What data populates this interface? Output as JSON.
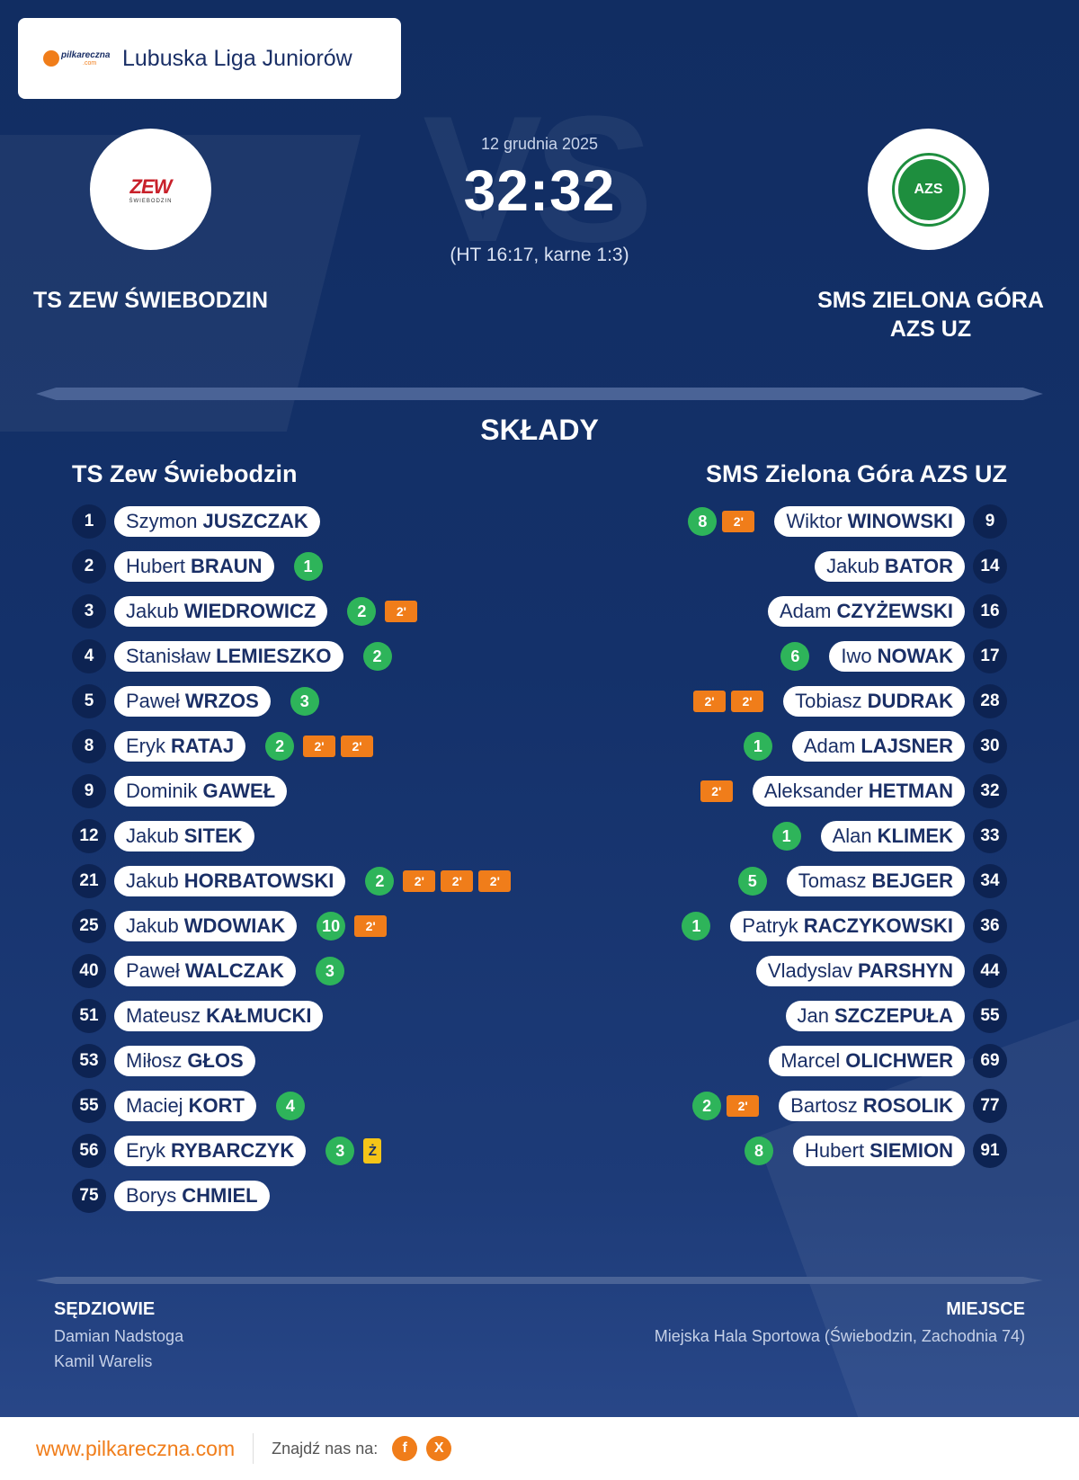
{
  "league": {
    "brand_top": "pilkareczna",
    "brand_bottom": ".com",
    "name": "Lubuska Liga Juniorów"
  },
  "match": {
    "date": "12 grudnia 2025",
    "score": "32:32",
    "halftime": "(HT 16:17, karne 1:3)",
    "vs_watermark": "VS"
  },
  "home": {
    "name_big": "TS ZEW ŚWIEBODZIN",
    "name": "TS Zew Świebodzin",
    "logo_text": "ZEW",
    "logo_sub": "ŚWIEBODZIN"
  },
  "away": {
    "name_big_line1": "SMS ZIELONA GÓRA",
    "name_big_line2": "AZS UZ",
    "name": "SMS Zielona Góra AZS UZ",
    "logo_text": "AZS"
  },
  "section_title": "SKŁADY",
  "lineups": {
    "home": [
      {
        "number": "1",
        "first": "Szymon",
        "last": "JUSZCZAK",
        "goals": null,
        "penalties": [],
        "yellow": null
      },
      {
        "number": "2",
        "first": "Hubert",
        "last": "BRAUN",
        "goals": "1",
        "penalties": [],
        "yellow": null
      },
      {
        "number": "3",
        "first": "Jakub",
        "last": "WIEDROWICZ",
        "goals": "2",
        "penalties": [
          "2'"
        ],
        "yellow": null
      },
      {
        "number": "4",
        "first": "Stanisław",
        "last": "LEMIESZKO",
        "goals": "2",
        "penalties": [],
        "yellow": null
      },
      {
        "number": "5",
        "first": "Paweł",
        "last": "WRZOS",
        "goals": "3",
        "penalties": [],
        "yellow": null
      },
      {
        "number": "8",
        "first": "Eryk",
        "last": "RATAJ",
        "goals": "2",
        "penalties": [
          "2'",
          "2'"
        ],
        "yellow": null
      },
      {
        "number": "9",
        "first": "Dominik",
        "last": "GAWEŁ",
        "goals": null,
        "penalties": [],
        "yellow": null
      },
      {
        "number": "12",
        "first": "Jakub",
        "last": "SITEK",
        "goals": null,
        "penalties": [],
        "yellow": null
      },
      {
        "number": "21",
        "first": "Jakub",
        "last": "HORBATOWSKI",
        "goals": "2",
        "penalties": [
          "2'",
          "2'",
          "2'"
        ],
        "yellow": null
      },
      {
        "number": "25",
        "first": "Jakub",
        "last": "WDOWIAK",
        "goals": "10",
        "penalties": [
          "2'"
        ],
        "yellow": null
      },
      {
        "number": "40",
        "first": "Paweł",
        "last": "WALCZAK",
        "goals": "3",
        "penalties": [],
        "yellow": null
      },
      {
        "number": "51",
        "first": "Mateusz",
        "last": "KAŁMUCKI",
        "goals": null,
        "penalties": [],
        "yellow": null
      },
      {
        "number": "53",
        "first": "Miłosz",
        "last": "GŁOS",
        "goals": null,
        "penalties": [],
        "yellow": null
      },
      {
        "number": "55",
        "first": "Maciej",
        "last": "KORT",
        "goals": "4",
        "penalties": [],
        "yellow": null
      },
      {
        "number": "56",
        "first": "Eryk",
        "last": "RYBARCZYK",
        "goals": "3",
        "penalties": [],
        "yellow": "Ż"
      },
      {
        "number": "75",
        "first": "Borys",
        "last": "CHMIEL",
        "goals": null,
        "penalties": [],
        "yellow": null
      }
    ],
    "away": [
      {
        "number": "9",
        "first": "Wiktor",
        "last": "WINOWSKI",
        "goals": "8",
        "penalties": [
          "2'"
        ]
      },
      {
        "number": "14",
        "first": "Jakub",
        "last": "BATOR",
        "goals": null,
        "penalties": []
      },
      {
        "number": "16",
        "first": "Adam",
        "last": "CZYŻEWSKI",
        "goals": null,
        "penalties": []
      },
      {
        "number": "17",
        "first": "Iwo",
        "last": "NOWAK",
        "goals": "6",
        "penalties": []
      },
      {
        "number": "28",
        "first": "Tobiasz",
        "last": "DUDRAK",
        "goals": null,
        "penalties": [
          "2'",
          "2'"
        ]
      },
      {
        "number": "30",
        "first": "Adam",
        "last": "LAJSNER",
        "goals": "1",
        "penalties": []
      },
      {
        "number": "32",
        "first": "Aleksander",
        "last": "HETMAN",
        "goals": null,
        "penalties": [
          "2'"
        ]
      },
      {
        "number": "33",
        "first": "Alan",
        "last": "KLIMEK",
        "goals": "1",
        "penalties": []
      },
      {
        "number": "34",
        "first": "Tomasz",
        "last": "BEJGER",
        "goals": "5",
        "penalties": []
      },
      {
        "number": "36",
        "first": "Patryk",
        "last": "RACZYKOWSKI",
        "goals": "1",
        "penalties": []
      },
      {
        "number": "44",
        "first": "Vladyslav",
        "last": "PARSHYN",
        "goals": null,
        "penalties": []
      },
      {
        "number": "55",
        "first": "Jan",
        "last": "SZCZEPUŁA",
        "goals": null,
        "penalties": []
      },
      {
        "number": "69",
        "first": "Marcel",
        "last": "OLICHWER",
        "goals": null,
        "penalties": []
      },
      {
        "number": "77",
        "first": "Bartosz",
        "last": "ROSOLIK",
        "goals": "2",
        "penalties": [
          "2'"
        ]
      },
      {
        "number": "91",
        "first": "Hubert",
        "last": "SIEMION",
        "goals": "8",
        "penalties": []
      }
    ]
  },
  "referees": {
    "title": "SĘDZIOWIE",
    "names": [
      "Damian Nadstoga",
      "Kamil Warelis"
    ]
  },
  "venue": {
    "title": "MIEJSCE",
    "text": "Miejska Hala Sportowa (Świebodzin, Zachodnia 74)"
  },
  "footer": {
    "site": "www.pilkareczna.com",
    "find_us": "Znajdź nas na:",
    "socials": [
      {
        "label": "f",
        "icon": "facebook-icon"
      },
      {
        "label": "X",
        "icon": "x-icon"
      }
    ]
  },
  "colors": {
    "goal": "#2eb45a",
    "penalty": "#f07d1a",
    "yellow_card": "#f5c518",
    "background": "#14316a"
  }
}
